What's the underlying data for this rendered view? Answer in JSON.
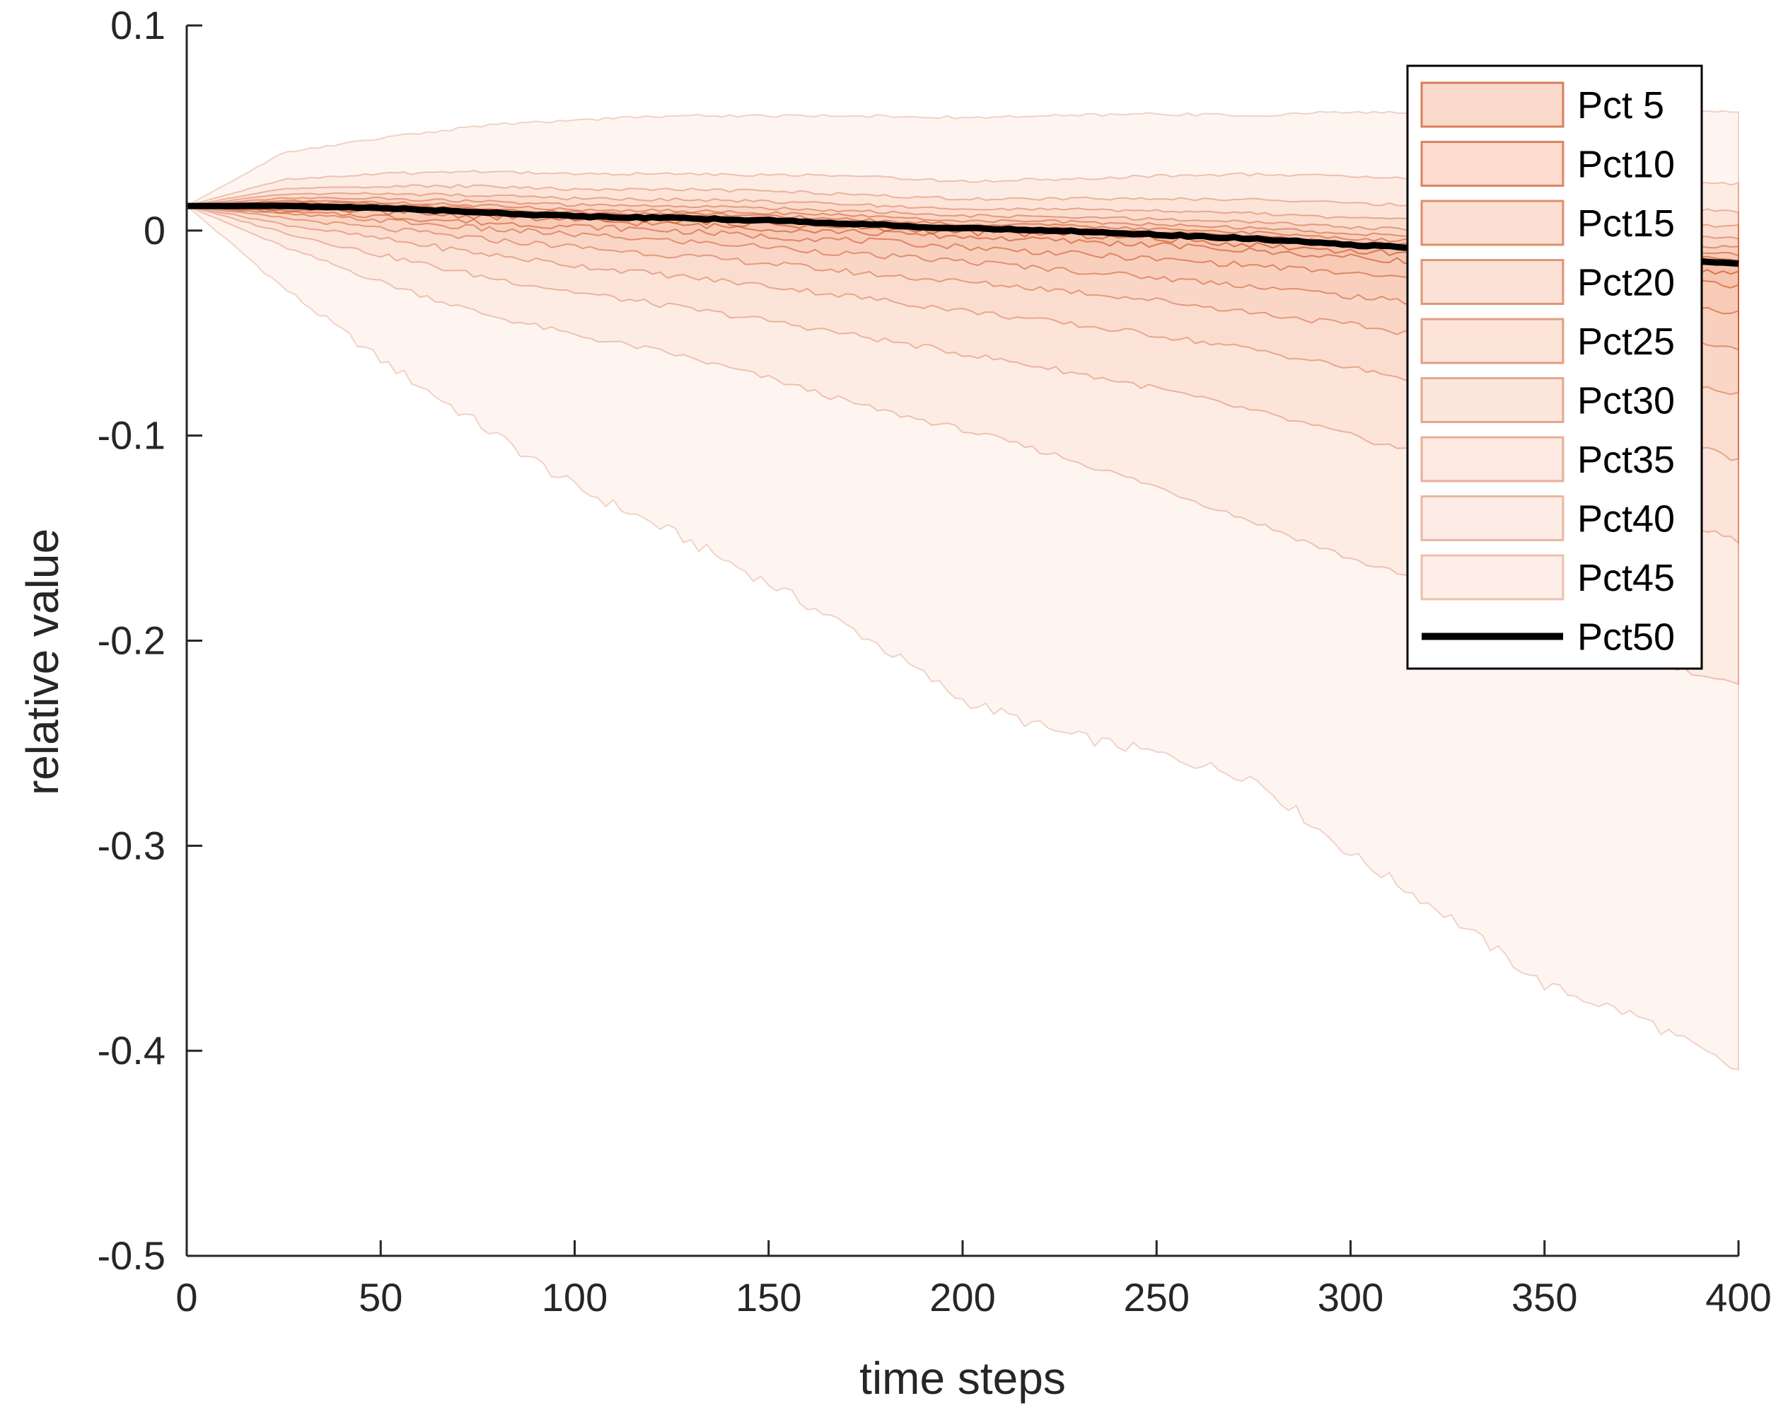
{
  "chart_data": {
    "type": "area",
    "title": "",
    "xlabel": "time steps",
    "ylabel": "relative value",
    "xlim": [
      0,
      400
    ],
    "ylim": [
      -0.5,
      0.1
    ],
    "x_ticks": [
      0,
      50,
      100,
      150,
      200,
      250,
      300,
      350,
      400
    ],
    "x_tick_labels": [
      "0",
      "50",
      "100",
      "150",
      "200",
      "250",
      "300",
      "350",
      "400"
    ],
    "y_ticks": [
      0.1,
      0,
      -0.1,
      -0.2,
      -0.3,
      -0.4,
      -0.5
    ],
    "y_tick_labels": [
      "0.1",
      "0",
      "-0.1",
      "-0.2",
      "-0.3",
      "-0.4",
      "-0.5"
    ],
    "grid": false,
    "legend_position": "top-right",
    "colors": {
      "band_fill": "#f4a582",
      "band_edge": "#cc5a2e",
      "median": "#000000",
      "axis": "#262626"
    },
    "x": [
      0,
      25,
      50,
      75,
      100,
      125,
      150,
      175,
      200,
      225,
      250,
      275,
      300,
      325,
      350,
      375,
      400
    ],
    "median": {
      "name": "Pct50",
      "values": [
        0.012,
        0.012,
        0.011,
        0.009,
        0.007,
        0.006,
        0.005,
        0.003,
        0.001,
        0.0,
        -0.002,
        -0.004,
        -0.007,
        -0.009,
        -0.011,
        -0.013,
        -0.016
      ]
    },
    "bands": [
      {
        "name": "Pct 5",
        "lower": [
          0.012,
          -0.028,
          -0.063,
          -0.094,
          -0.125,
          -0.147,
          -0.172,
          -0.198,
          -0.229,
          -0.245,
          -0.255,
          -0.267,
          -0.304,
          -0.334,
          -0.368,
          -0.384,
          -0.41
        ],
        "upper": [
          0.012,
          0.038,
          0.045,
          0.051,
          0.054,
          0.056,
          0.056,
          0.056,
          0.055,
          0.056,
          0.057,
          0.056,
          0.058,
          0.057,
          0.058,
          0.058,
          0.058
        ]
      },
      {
        "name": "Pct10",
        "lower": [
          0.012,
          -0.008,
          -0.025,
          -0.04,
          -0.051,
          -0.06,
          -0.072,
          -0.086,
          -0.097,
          -0.11,
          -0.125,
          -0.142,
          -0.16,
          -0.175,
          -0.19,
          -0.208,
          -0.222
        ]
      },
      {
        "name": "Pct15",
        "lower": [
          0.012,
          -0.001,
          -0.012,
          -0.022,
          -0.03,
          -0.037,
          -0.044,
          -0.052,
          -0.06,
          -0.068,
          -0.077,
          -0.088,
          -0.1,
          -0.112,
          -0.124,
          -0.137,
          -0.151
        ]
      },
      {
        "name": "Pct20",
        "lower": [
          0.012,
          0.003,
          -0.004,
          -0.011,
          -0.017,
          -0.022,
          -0.027,
          -0.033,
          -0.039,
          -0.045,
          -0.051,
          -0.058,
          -0.067,
          -0.076,
          -0.086,
          -0.097,
          -0.112
        ]
      },
      {
        "name": "Pct25",
        "lower": [
          0.012,
          0.006,
          0.001,
          -0.004,
          -0.008,
          -0.012,
          -0.016,
          -0.021,
          -0.025,
          -0.029,
          -0.034,
          -0.04,
          -0.046,
          -0.053,
          -0.061,
          -0.069,
          -0.08
        ]
      },
      {
        "name": "Pct30",
        "lower": [
          0.012,
          0.008,
          0.005,
          0.001,
          -0.002,
          -0.005,
          -0.008,
          -0.012,
          -0.015,
          -0.019,
          -0.023,
          -0.027,
          -0.032,
          -0.037,
          -0.043,
          -0.049,
          -0.057
        ]
      },
      {
        "name": "Pct35",
        "lower": [
          0.012,
          0.009,
          0.007,
          0.004,
          0.002,
          0.0,
          -0.003,
          -0.005,
          -0.008,
          -0.011,
          -0.014,
          -0.017,
          -0.021,
          -0.025,
          -0.029,
          -0.034,
          -0.04
        ]
      },
      {
        "name": "Pct40",
        "lower": [
          0.012,
          0.01,
          0.009,
          0.007,
          0.005,
          0.003,
          0.001,
          -0.001,
          -0.003,
          -0.005,
          -0.007,
          -0.01,
          -0.013,
          -0.016,
          -0.019,
          -0.022,
          -0.027
        ]
      },
      {
        "name": "Pct45",
        "lower": [
          0.012,
          0.011,
          0.01,
          0.008,
          0.006,
          0.005,
          0.003,
          0.001,
          -0.001,
          -0.002,
          -0.004,
          -0.007,
          -0.01,
          -0.012,
          -0.015,
          -0.018,
          -0.021
        ]
      }
    ]
  }
}
